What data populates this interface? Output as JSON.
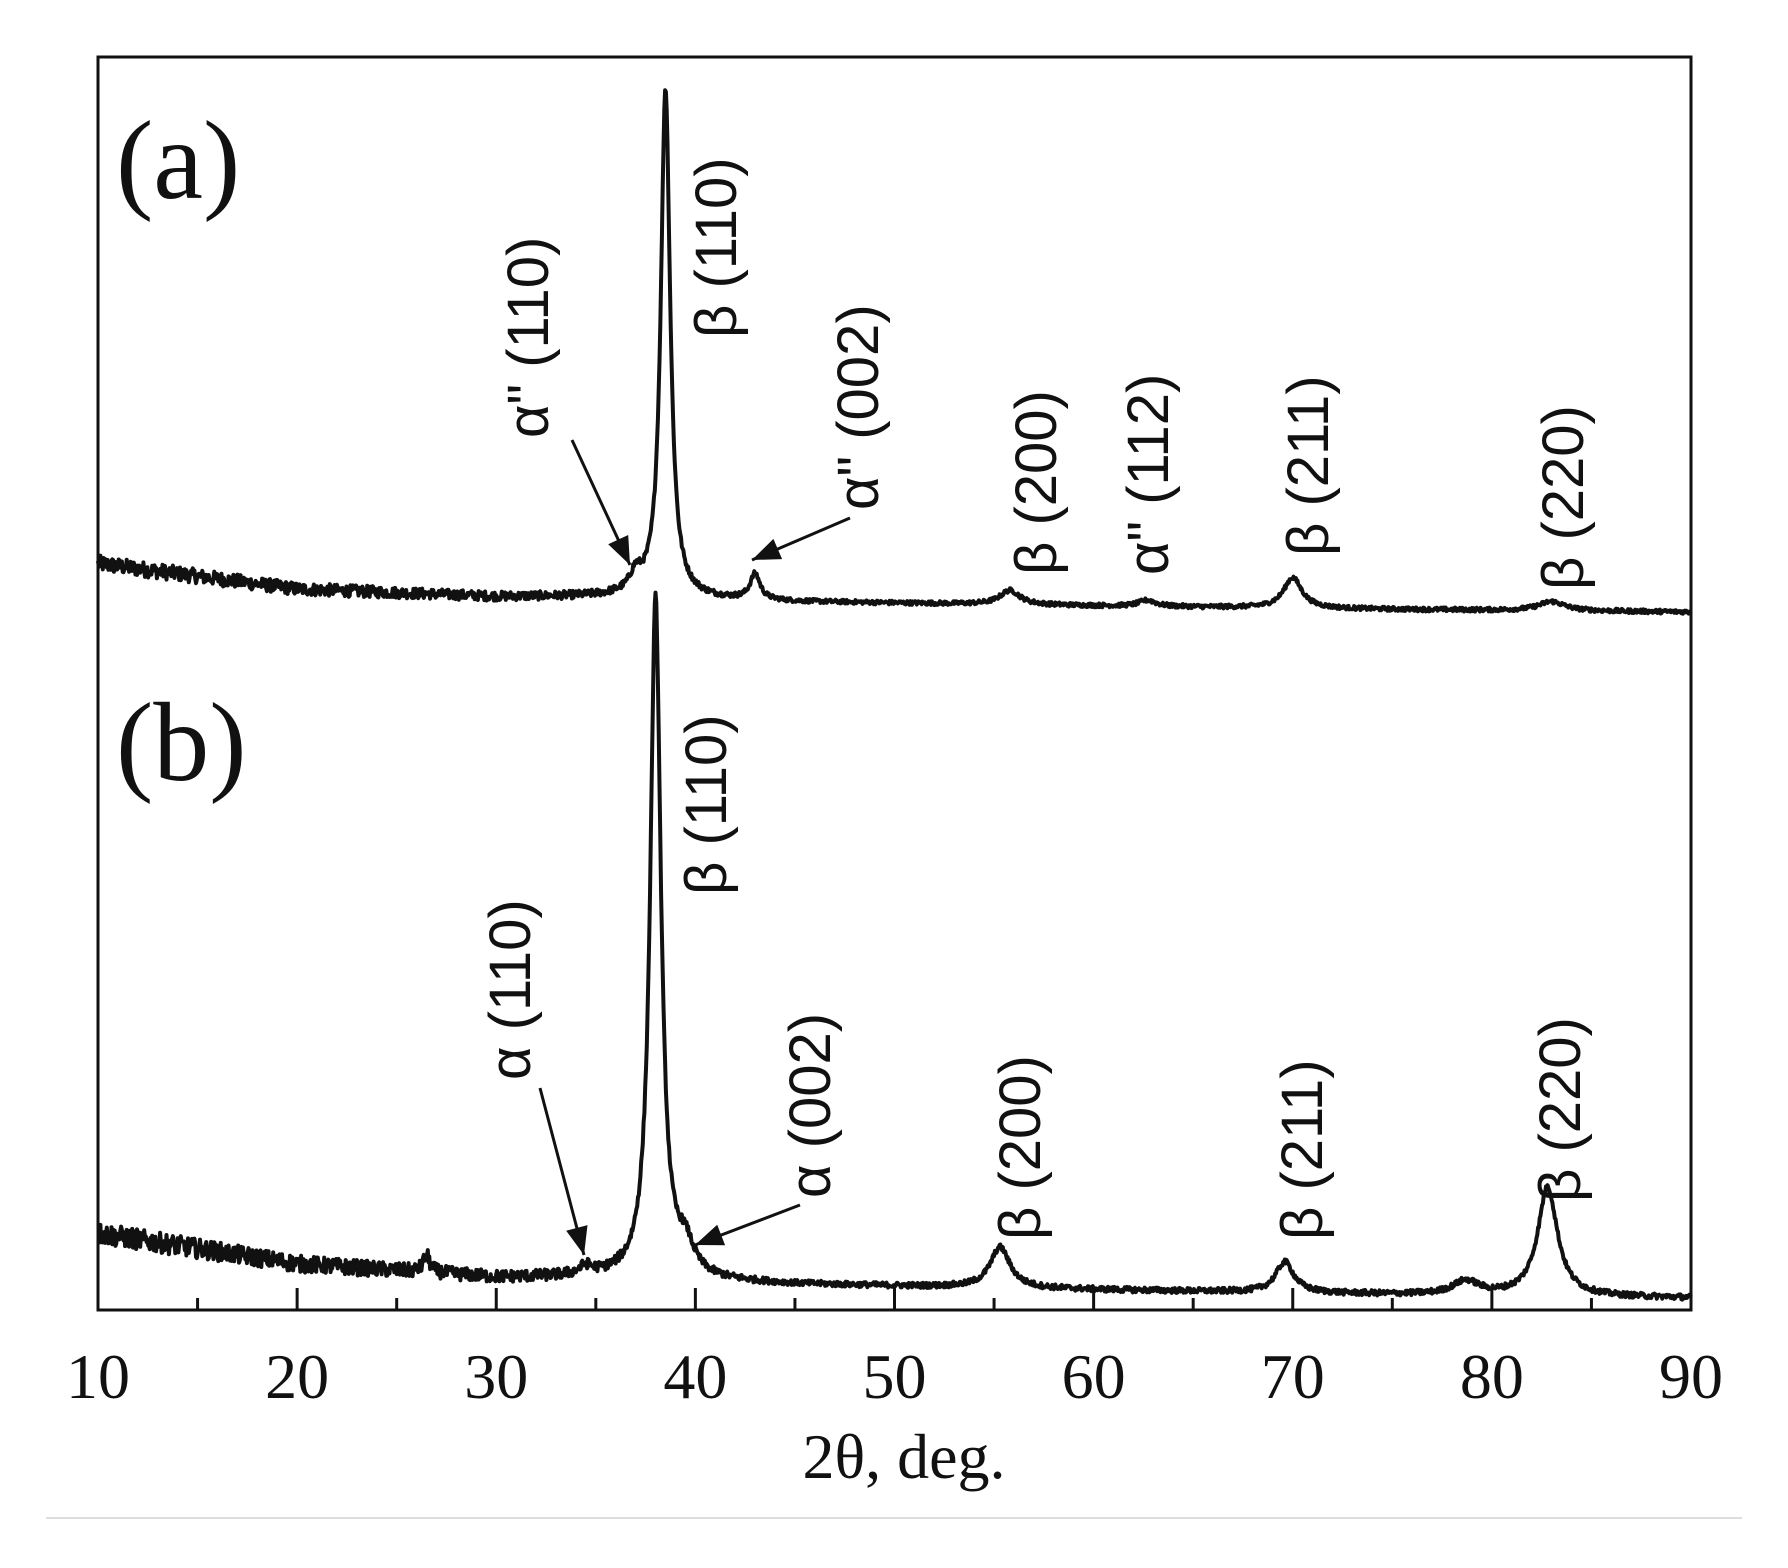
{
  "chart_data": {
    "type": "line",
    "xlabel": "2θ, deg.",
    "xlim": [
      10,
      90
    ],
    "x_ticks": [
      10,
      20,
      30,
      40,
      50,
      60,
      70,
      80,
      90
    ],
    "ylabel": "",
    "y_ticks_shown": false,
    "grid": false,
    "panels": [
      {
        "label": "(a)",
        "baseline": [
          [
            10,
            0.095
          ],
          [
            20,
            0.045
          ],
          [
            30,
            0.03
          ],
          [
            36,
            0.03
          ],
          [
            45,
            0.02
          ],
          [
            60,
            0.012
          ],
          [
            75,
            0.005
          ],
          [
            90,
            0.0
          ]
        ],
        "peaks": [
          {
            "x": 37.0,
            "height": 0.035,
            "width": 0.35
          },
          {
            "x": 38.5,
            "height": 1.0,
            "width": 0.28
          },
          {
            "x": 43.0,
            "height": 0.05,
            "width": 0.3
          },
          {
            "x": 55.8,
            "height": 0.028,
            "width": 0.6
          },
          {
            "x": 62.7,
            "height": 0.012,
            "width": 0.5
          },
          {
            "x": 70.0,
            "height": 0.06,
            "width": 0.55
          },
          {
            "x": 83.0,
            "height": 0.018,
            "width": 0.8
          }
        ],
        "annotations": [
          {
            "text": "α\" (110)",
            "x": 37.0,
            "arrow": true
          },
          {
            "text": "β (110)",
            "x": 38.5,
            "arrow": false
          },
          {
            "text": "α\" (002)",
            "x": 43.0,
            "arrow": true
          },
          {
            "text": "β (200)",
            "x": 55.8,
            "arrow": false
          },
          {
            "text": "α\" (112)",
            "x": 62.7,
            "arrow": false
          },
          {
            "text": "β (211)",
            "x": 70.0,
            "arrow": false
          },
          {
            "text": "β (220)",
            "x": 83.0,
            "arrow": false
          }
        ]
      },
      {
        "label": "(b)",
        "baseline": [
          [
            10,
            0.095
          ],
          [
            20,
            0.05
          ],
          [
            30,
            0.03
          ],
          [
            36,
            0.03
          ],
          [
            45,
            0.02
          ],
          [
            60,
            0.012
          ],
          [
            75,
            0.005
          ],
          [
            90,
            0.0
          ]
        ],
        "peaks": [
          {
            "x": 26.5,
            "height": 0.025,
            "width": 0.2
          },
          {
            "x": 34.5,
            "height": 0.012,
            "width": 0.4
          },
          {
            "x": 38.0,
            "height": 1.0,
            "width": 0.32
          },
          {
            "x": 39.5,
            "height": 0.04,
            "width": 0.5
          },
          {
            "x": 55.3,
            "height": 0.06,
            "width": 0.6
          },
          {
            "x": 69.6,
            "height": 0.045,
            "width": 0.55
          },
          {
            "x": 78.7,
            "height": 0.02,
            "width": 0.8
          },
          {
            "x": 82.8,
            "height": 0.16,
            "width": 0.6
          }
        ],
        "annotations": [
          {
            "text": "α (110)",
            "x": 34.5,
            "arrow": true
          },
          {
            "text": "β (110)",
            "x": 38.0,
            "arrow": false
          },
          {
            "text": "α (002)",
            "x": 39.5,
            "arrow": true
          },
          {
            "text": "β (200)",
            "x": 55.3,
            "arrow": false
          },
          {
            "text": "β (211)",
            "x": 69.6,
            "arrow": false
          },
          {
            "text": "β (220)",
            "x": 82.8,
            "arrow": false
          }
        ]
      }
    ]
  }
}
